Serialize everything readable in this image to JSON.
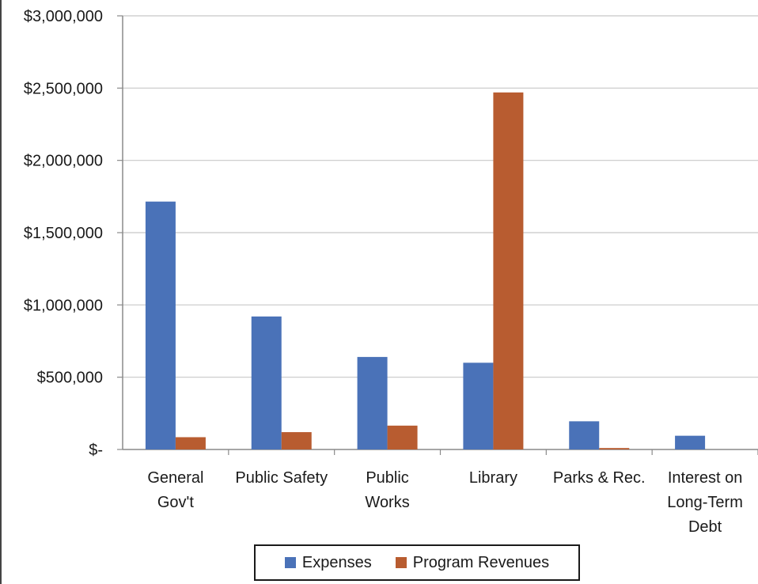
{
  "chart_data": {
    "type": "bar",
    "categories": [
      [
        "General",
        "Gov't"
      ],
      [
        "Public Safety"
      ],
      [
        "Public",
        "Works"
      ],
      [
        "Library"
      ],
      [
        "Parks & Rec."
      ],
      [
        "Interest on",
        "Long-Term",
        "Debt"
      ]
    ],
    "series": [
      {
        "name": "Expenses",
        "color": "#4a72b8",
        "values": [
          1715000,
          920000,
          640000,
          600000,
          195000,
          95000
        ]
      },
      {
        "name": "Program Revenues",
        "color": "#b85c30",
        "values": [
          85000,
          120000,
          165000,
          2470000,
          10000,
          0
        ]
      }
    ],
    "ylim": [
      0,
      3000000
    ],
    "yticks": [
      {
        "value": 0,
        "label": "$-"
      },
      {
        "value": 500000,
        "label": "$500,000"
      },
      {
        "value": 1000000,
        "label": "$1,000,000"
      },
      {
        "value": 1500000,
        "label": "$1,500,000"
      },
      {
        "value": 2000000,
        "label": "$2,000,000"
      },
      {
        "value": 2500000,
        "label": "$2,500,000"
      },
      {
        "value": 3000000,
        "label": "$3,000,000"
      }
    ],
    "grid": true,
    "legend_position": "bottom"
  }
}
